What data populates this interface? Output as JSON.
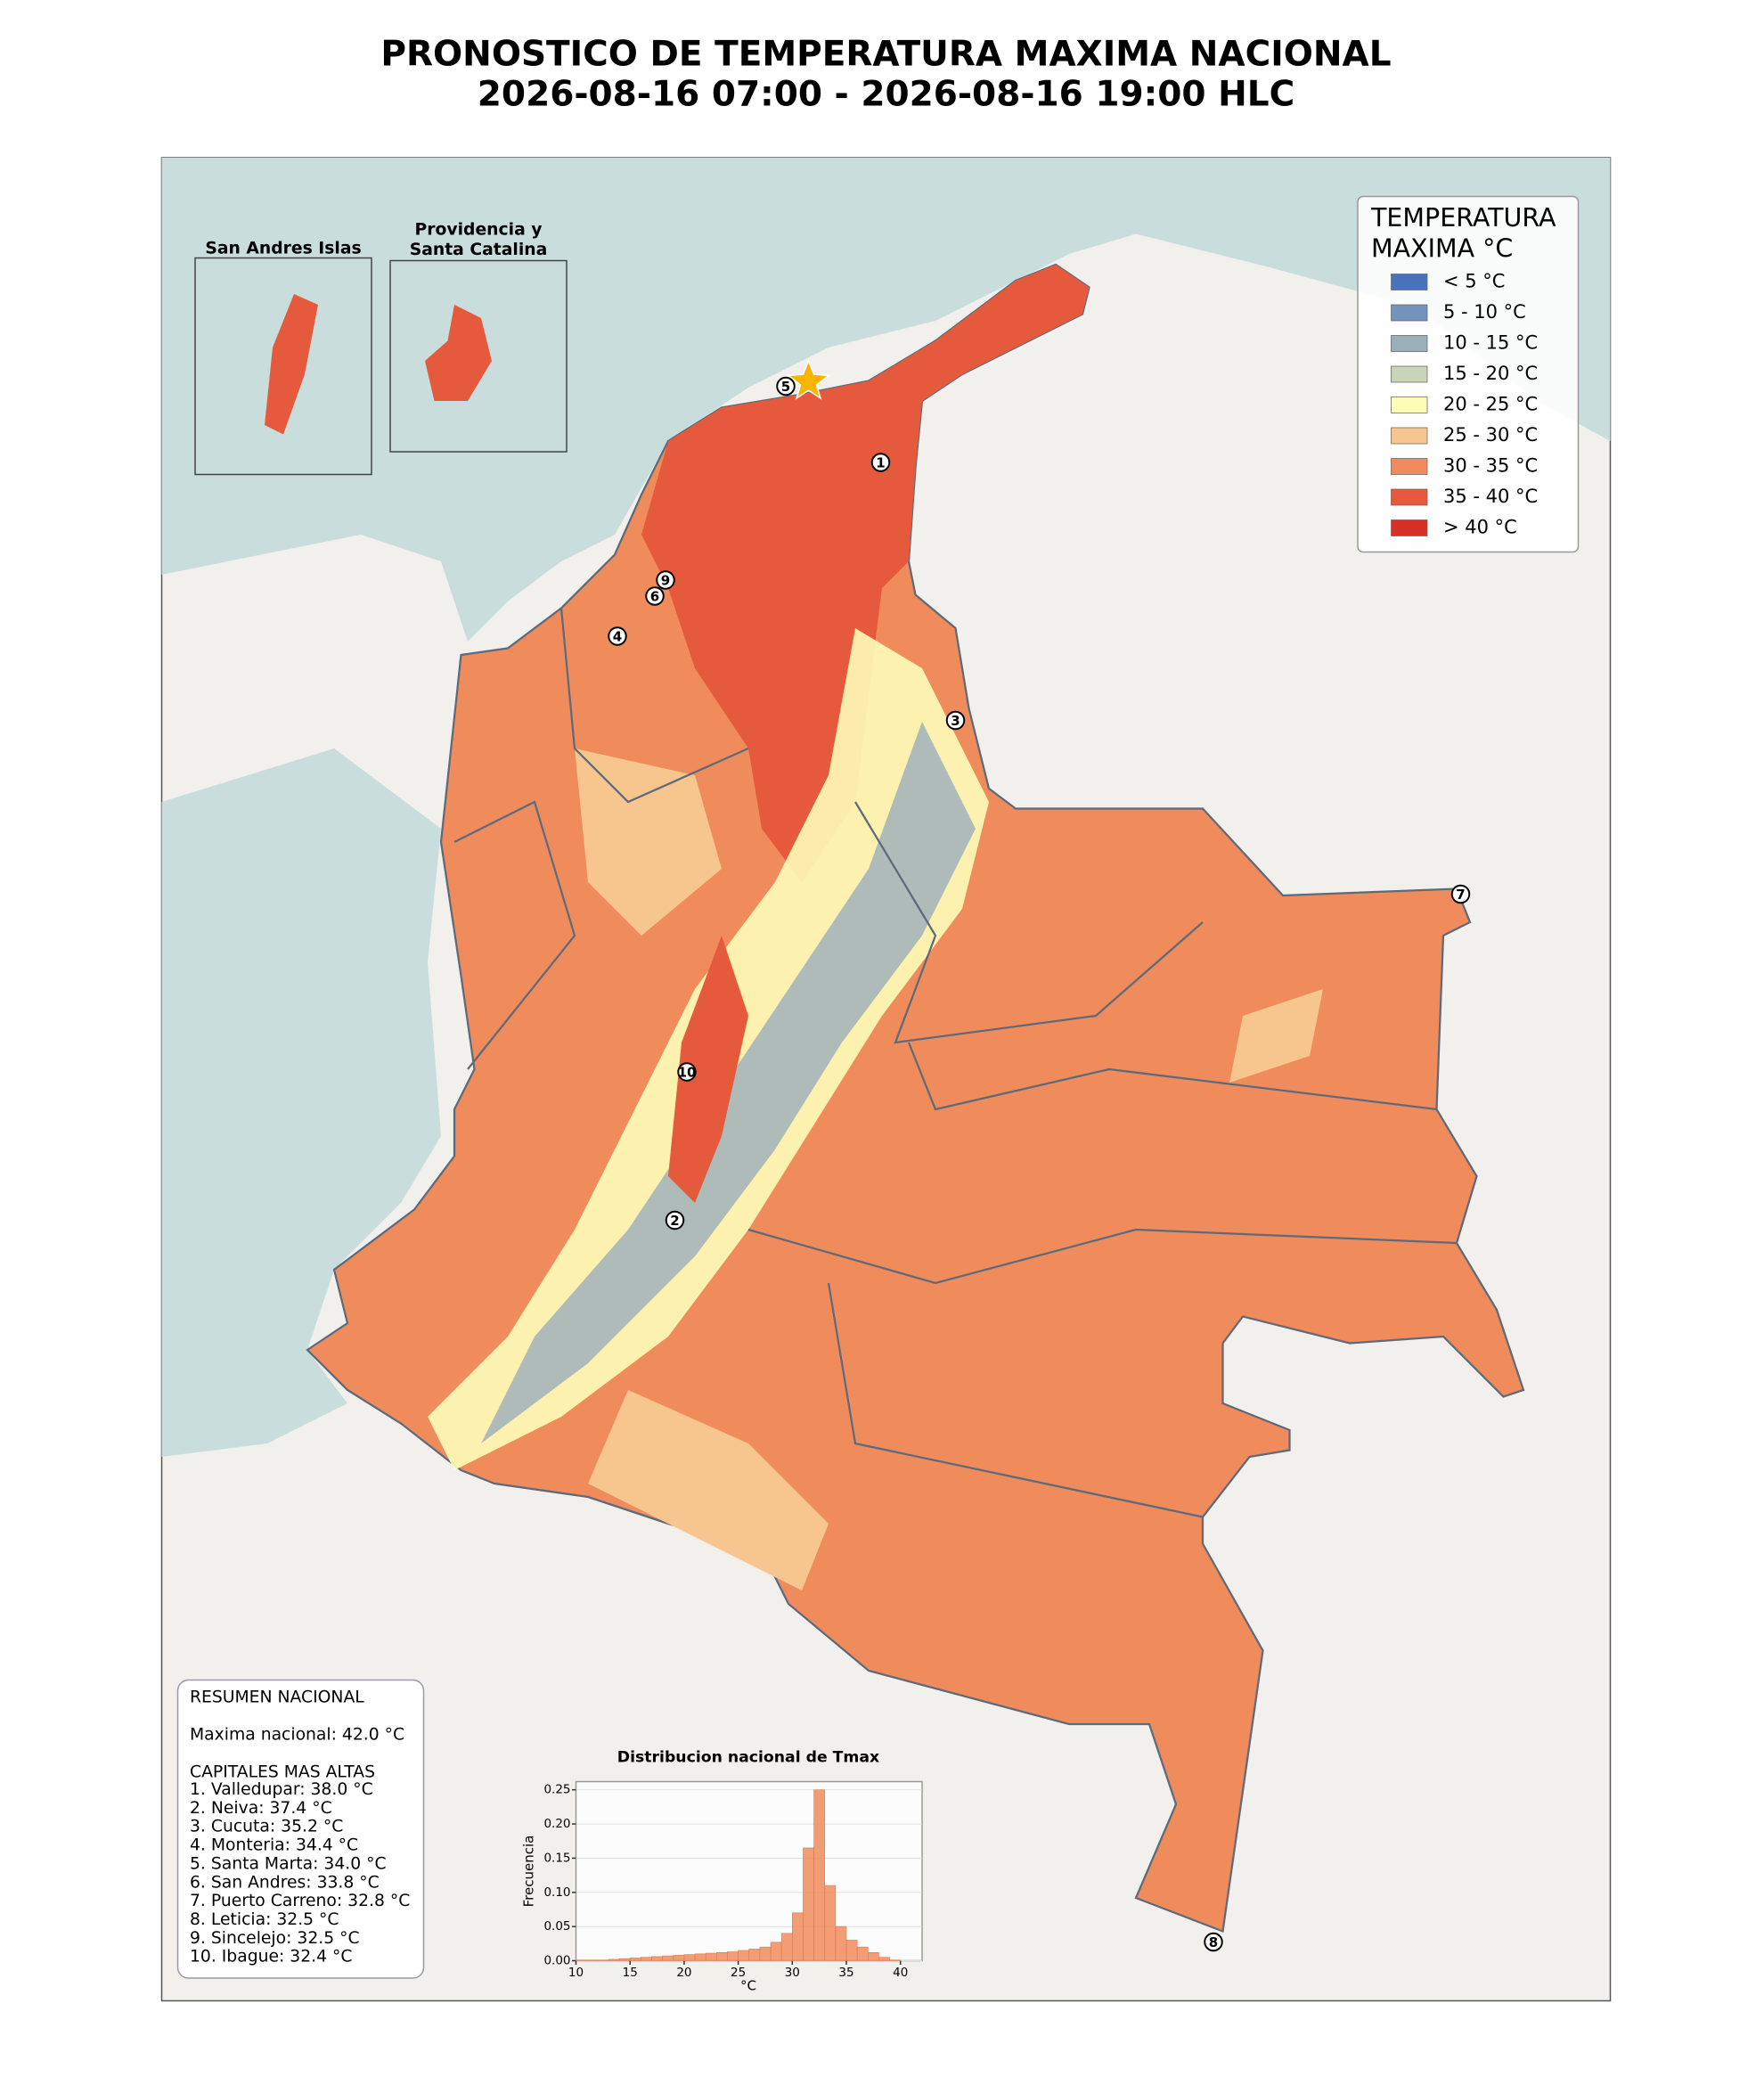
{
  "title": [
    "PRONOSTICO DE TEMPERATURA MAXIMA NACIONAL",
    "2026-08-16 07:00 - 2026-08-16 19:00 HLC"
  ],
  "legend": {
    "title": [
      "TEMPERATURA",
      "MAXIMA °C"
    ],
    "items": [
      {
        "label": "< 5 °C",
        "color": "#4a72b8"
      },
      {
        "label": "5 - 10 °C",
        "color": "#7393bd"
      },
      {
        "label": "10 - 15 °C",
        "color": "#9aaebb"
      },
      {
        "label": "15 - 20 °C",
        "color": "#c9d4b8"
      },
      {
        "label": "20 - 25 °C",
        "color": "#fefcb8"
      },
      {
        "label": "25 - 30 °C",
        "color": "#f7c68f"
      },
      {
        "label": "30 - 35 °C",
        "color": "#f08c5c"
      },
      {
        "label": "35 - 40 °C",
        "color": "#e55a3c"
      },
      {
        "label": "> 40 °C",
        "color": "#d73027"
      }
    ]
  },
  "insets": [
    {
      "label": [
        "San Andres Islas"
      ]
    },
    {
      "label": [
        "Providencia y",
        "Santa Catalina"
      ]
    }
  ],
  "markers": [
    "1",
    "2",
    "3",
    "4",
    "5",
    "6",
    "7",
    "8",
    "9",
    "10"
  ],
  "summary": {
    "heading": "RESUMEN NACIONAL",
    "max": "Maxima nacional: 42.0 °C",
    "subheading": "CAPITALES MAS ALTAS",
    "lines": [
      "1. Valledupar: 38.0 °C",
      "2. Neiva: 37.4 °C",
      "3. Cucuta: 35.2 °C",
      "4. Monteria: 34.4 °C",
      "5. Santa Marta: 34.0 °C",
      "6. San Andres: 33.8 °C",
      "7. Puerto Carreno: 32.8 °C",
      "8. Leticia: 32.5 °C",
      "9. Sincelejo: 32.5 °C",
      "10. Ibague: 32.4 °C"
    ]
  },
  "chart_data": {
    "type": "histogram",
    "title": "Distribucion nacional de Tmax",
    "xlabel": "°C",
    "ylabel": "Frecuencia",
    "color": "#f08c5c",
    "bins": [
      10,
      11,
      12,
      13,
      14,
      15,
      16,
      17,
      18,
      19,
      20,
      21,
      22,
      23,
      24,
      25,
      26,
      27,
      28,
      29,
      30,
      31,
      32,
      33,
      34,
      35,
      36,
      37,
      38,
      39,
      40
    ],
    "values": [
      0.001,
      0.001,
      0.001,
      0.002,
      0.003,
      0.004,
      0.005,
      0.006,
      0.007,
      0.008,
      0.009,
      0.01,
      0.011,
      0.012,
      0.013,
      0.015,
      0.017,
      0.02,
      0.027,
      0.04,
      0.07,
      0.165,
      0.25,
      0.11,
      0.05,
      0.03,
      0.02,
      0.012,
      0.005,
      0.001
    ],
    "xlim": [
      10,
      42
    ],
    "ylim": [
      0,
      0.262
    ],
    "xticks": [
      10,
      15,
      20,
      25,
      30,
      35,
      40
    ],
    "yticks": [
      {
        "value": 0,
        "label": "0.00"
      },
      {
        "value": 0.05,
        "label": "0.05"
      },
      {
        "value": 0.1,
        "label": "0.10"
      },
      {
        "value": 0.15,
        "label": "0.15"
      },
      {
        "value": 0.2,
        "label": "0.20"
      },
      {
        "value": 0.25,
        "label": "0.25"
      }
    ]
  }
}
